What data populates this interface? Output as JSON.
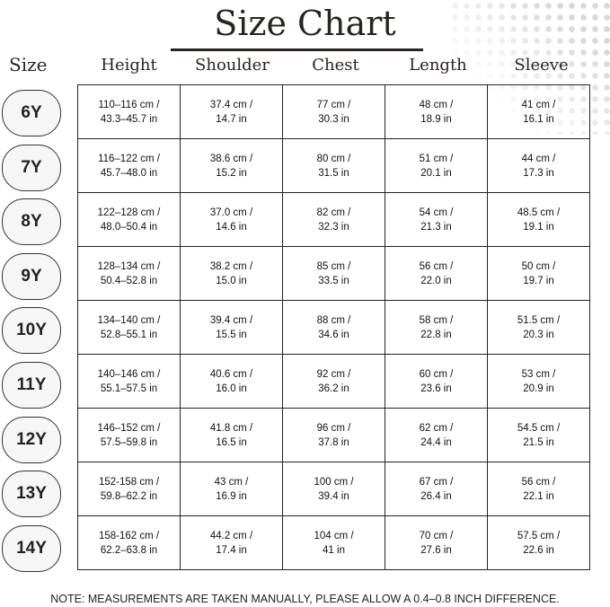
{
  "title": "Size Chart",
  "size_header": "Size",
  "columns": [
    "Height",
    "Shoulder",
    "Chest",
    "Length",
    "Sleeve"
  ],
  "rows": [
    {
      "size": "6Y",
      "cells": [
        [
          "110–116 cm /",
          "43.3–45.7 in"
        ],
        [
          "37.4 cm /",
          "14.7 in"
        ],
        [
          "77 cm /",
          "30.3 in"
        ],
        [
          "48 cm /",
          "18.9 in"
        ],
        [
          "41 cm /",
          "16.1 in"
        ]
      ]
    },
    {
      "size": "7Y",
      "cells": [
        [
          "116–122 cm /",
          "45.7–48.0 in"
        ],
        [
          "38.6 cm /",
          "15.2 in"
        ],
        [
          "80 cm /",
          "31.5 in"
        ],
        [
          "51 cm /",
          "20.1 in"
        ],
        [
          "44 cm /",
          "17.3 in"
        ]
      ]
    },
    {
      "size": "8Y",
      "cells": [
        [
          "122–128 cm /",
          "48.0–50.4 in"
        ],
        [
          "37.0 cm /",
          "14.6 in"
        ],
        [
          "82 cm /",
          "32.3 in"
        ],
        [
          "54 cm /",
          "21.3 in"
        ],
        [
          "48.5 cm /",
          "19.1 in"
        ]
      ]
    },
    {
      "size": "9Y",
      "cells": [
        [
          "128–134 cm /",
          "50.4–52.8 in"
        ],
        [
          "38.2 cm /",
          "15.0 in"
        ],
        [
          "85 cm /",
          "33.5 in"
        ],
        [
          "56 cm /",
          "22.0 in"
        ],
        [
          "50 cm /",
          "19.7 in"
        ]
      ]
    },
    {
      "size": "10Y",
      "cells": [
        [
          "134–140 cm /",
          "52.8–55.1 in"
        ],
        [
          "39.4 cm /",
          "15.5 in"
        ],
        [
          "88 cm /",
          "34.6 in"
        ],
        [
          "58 cm /",
          "22.8 in"
        ],
        [
          "51.5 cm /",
          "20.3 in"
        ]
      ]
    },
    {
      "size": "11Y",
      "cells": [
        [
          "140–146 cm /",
          "55.1–57.5 in"
        ],
        [
          "40.6 cm /",
          "16.0 in"
        ],
        [
          "92 cm /",
          "36.2 in"
        ],
        [
          "60 cm /",
          "23.6 in"
        ],
        [
          "53 cm /",
          "20.9 in"
        ]
      ]
    },
    {
      "size": "12Y",
      "cells": [
        [
          "146–152 cm /",
          "57.5–59.8 in"
        ],
        [
          "41.8 cm /",
          "16.5 in"
        ],
        [
          "96 cm /",
          "37.8 in"
        ],
        [
          "62 cm /",
          "24.4 in"
        ],
        [
          "54.5 cm /",
          "21.5 in"
        ]
      ]
    },
    {
      "size": "13Y",
      "cells": [
        [
          "152-158 cm /",
          "59.8–62.2 in"
        ],
        [
          "43 cm /",
          "16.9 in"
        ],
        [
          "100 cm /",
          "39.4 in"
        ],
        [
          "67 cm /",
          "26.4 in"
        ],
        [
          "56 cm /",
          "22.1 in"
        ]
      ]
    },
    {
      "size": "14Y",
      "cells": [
        [
          "158-162 cm /",
          "62.2–63.8 in"
        ],
        [
          "44.2 cm /",
          "17.4 in"
        ],
        [
          "104 cm /",
          "41 in"
        ],
        [
          "70 cm /",
          "27.6 in"
        ],
        [
          "57.5 cm /",
          "22.6 in"
        ]
      ]
    }
  ],
  "note": "NOTE: MEASUREMENTS ARE TAKEN MANUALLY, PLEASE ALLOW A 0.4–0.8 INCH DIFFERENCE."
}
